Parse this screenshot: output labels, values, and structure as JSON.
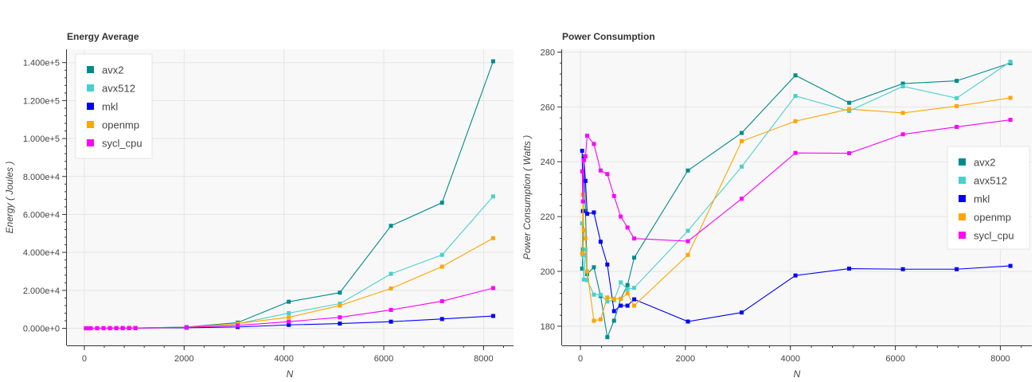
{
  "chart_data": [
    {
      "type": "line",
      "title": "Energy Average",
      "xlabel": "N",
      "ylabel": "Energy ( Joules )",
      "xlim": [
        -350,
        8600
      ],
      "ylim": [
        -9000,
        147000
      ],
      "x_ticks": [
        0,
        2000,
        4000,
        6000,
        8000
      ],
      "y_ticks": [
        0,
        20000,
        40000,
        60000,
        80000,
        100000,
        120000,
        140000
      ],
      "x_tick_labels": [
        "0",
        "2000",
        "4000",
        "6000",
        "8000"
      ],
      "y_tick_labels": [
        "0.000e+0",
        "2.000e+4",
        "4.000e+4",
        "6.000e+4",
        "8.000e+4",
        "1.000e+5",
        "1.200e+5",
        "1.400e+5"
      ],
      "grid": true,
      "legend_position": "top-left",
      "x": [
        32,
        64,
        128,
        256,
        384,
        512,
        640,
        768,
        896,
        1024,
        2048,
        3072,
        4096,
        5120,
        6144,
        7168,
        8192
      ],
      "series": [
        {
          "name": "avx2",
          "color": "#008b8b",
          "values": [
            5,
            10,
            20,
            40,
            60,
            80,
            100,
            120,
            140,
            160,
            700,
            3000,
            14000,
            18800,
            54000,
            66200,
            140700
          ]
        },
        {
          "name": "avx512",
          "color": "#48d1cc",
          "values": [
            5,
            10,
            20,
            40,
            60,
            80,
            100,
            120,
            140,
            160,
            600,
            2400,
            8000,
            13000,
            28700,
            38700,
            69500
          ]
        },
        {
          "name": "mkl",
          "color": "#0000ff",
          "values": [
            5,
            10,
            15,
            25,
            35,
            45,
            55,
            65,
            75,
            85,
            300,
            700,
            1800,
            2500,
            3500,
            4900,
            6500
          ]
        },
        {
          "name": "openmp",
          "color": "#ffa500",
          "values": [
            5,
            10,
            20,
            40,
            60,
            80,
            100,
            120,
            140,
            160,
            500,
            2500,
            5800,
            12000,
            21000,
            32500,
            47500
          ]
        },
        {
          "name": "sycl_cpu",
          "color": "#ff00ff",
          "values": [
            5,
            10,
            20,
            40,
            60,
            80,
            100,
            120,
            140,
            160,
            500,
            1500,
            3500,
            5800,
            9700,
            14300,
            21200
          ]
        }
      ]
    },
    {
      "type": "line",
      "title": "Power Consumption",
      "xlabel": "N",
      "ylabel": "Power Consumption ( Watts )",
      "xlim": [
        -350,
        8600
      ],
      "ylim": [
        173,
        281
      ],
      "x_ticks": [
        0,
        2000,
        4000,
        6000,
        8000
      ],
      "y_ticks": [
        180,
        200,
        220,
        240,
        260,
        280
      ],
      "x_tick_labels": [
        "0",
        "2000",
        "4000",
        "6000",
        "8000"
      ],
      "y_tick_labels": [
        "180",
        "200",
        "220",
        "240",
        "260",
        "280"
      ],
      "grid": true,
      "legend_position": "right",
      "series": [
        {
          "name": "avx2",
          "color": "#008b8b",
          "x": [
            32,
            48,
            64,
            96,
            128,
            256,
            384,
            512,
            640,
            768,
            896,
            1024,
            2048,
            3072,
            4096,
            5120,
            6144,
            7168,
            8192
          ],
          "values": [
            201,
            208,
            242,
            222,
            199,
            201.5,
            191,
            176,
            182,
            190,
            195,
            205,
            236.8,
            250.5,
            271.5,
            261.5,
            268.5,
            269.5,
            276
          ]
        },
        {
          "name": "avx512",
          "color": "#48d1cc",
          "x": [
            32,
            48,
            64,
            96,
            128,
            256,
            384,
            512,
            640,
            768,
            896,
            1024,
            2048,
            3072,
            4096,
            5120,
            6144,
            7168,
            8192
          ],
          "values": [
            217.5,
            206,
            197,
            208,
            196.8,
            191.5,
            191.5,
            189,
            189.5,
            196,
            193.5,
            194,
            214.8,
            238.2,
            264,
            258.5,
            267.5,
            263.2,
            276.5
          ]
        },
        {
          "name": "mkl",
          "color": "#0000ff",
          "x": [
            32,
            48,
            64,
            96,
            128,
            256,
            384,
            512,
            640,
            768,
            896,
            1024,
            2048,
            3072,
            4096,
            5120,
            6144,
            7168,
            8192
          ],
          "values": [
            244,
            222,
            241,
            233,
            221,
            221.5,
            210.8,
            202.5,
            185.5,
            187.5,
            187.5,
            189.8,
            181.7,
            185,
            198.5,
            201,
            200.8,
            200.8,
            202
          ]
        },
        {
          "name": "openmp",
          "color": "#ffa500",
          "x": [
            32,
            48,
            64,
            96,
            128,
            256,
            384,
            512,
            640,
            768,
            896,
            1024,
            2048,
            3072,
            4096,
            5120,
            6144,
            7168,
            8192
          ],
          "values": [
            206.5,
            228,
            215,
            212,
            200,
            182,
            182.5,
            190.5,
            190,
            190,
            192,
            187.5,
            206,
            247.5,
            254.8,
            259.2,
            257.8,
            260.3,
            263.3
          ]
        },
        {
          "name": "sycl_cpu",
          "color": "#ff00ff",
          "x": [
            32,
            48,
            64,
            96,
            128,
            256,
            384,
            512,
            640,
            768,
            896,
            1024,
            2048,
            3072,
            4096,
            5120,
            6144,
            7168,
            8192
          ],
          "values": [
            236.5,
            225.5,
            240.5,
            242,
            249.5,
            246.5,
            236.8,
            235.5,
            227.5,
            220,
            216,
            212,
            211,
            226.5,
            243.2,
            243.1,
            250,
            252.7,
            255.3
          ]
        }
      ]
    }
  ]
}
